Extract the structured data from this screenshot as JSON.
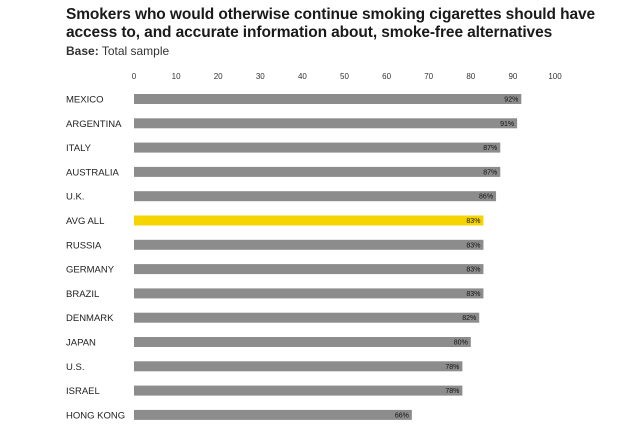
{
  "chart_data": {
    "type": "bar",
    "orientation": "horizontal",
    "title": "Smokers who would otherwise continue smoking cigarettes should have access to, and accurate information about, smoke-free alternatives",
    "base_label": "Base:",
    "base_value": "Total sample",
    "xlim": [
      0,
      100
    ],
    "ticks": [
      "0",
      "10",
      "20",
      "30",
      "40",
      "50",
      "60",
      "70",
      "80",
      "90",
      "100"
    ],
    "grid": false,
    "categories": [
      "MEXICO",
      "ARGENTINA",
      "ITALY",
      "AUSTRALIA",
      "U.K.",
      "AVG ALL",
      "RUSSIA",
      "GERMANY",
      "BRAZIL",
      "DENMARK",
      "JAPAN",
      "U.S.",
      "ISRAEL",
      "HONG KONG"
    ],
    "values": [
      92,
      91,
      87,
      87,
      86,
      83,
      83,
      83,
      83,
      82,
      80,
      78,
      78,
      66
    ],
    "value_labels": [
      "92%",
      "91%",
      "87%",
      "87%",
      "86%",
      "83%",
      "83%",
      "83%",
      "83%",
      "82%",
      "80%",
      "78%",
      "78%",
      "66%"
    ],
    "highlight_category": "AVG ALL",
    "colors": {
      "bar": "#8c8c8c",
      "highlight": "#f5d400"
    }
  }
}
